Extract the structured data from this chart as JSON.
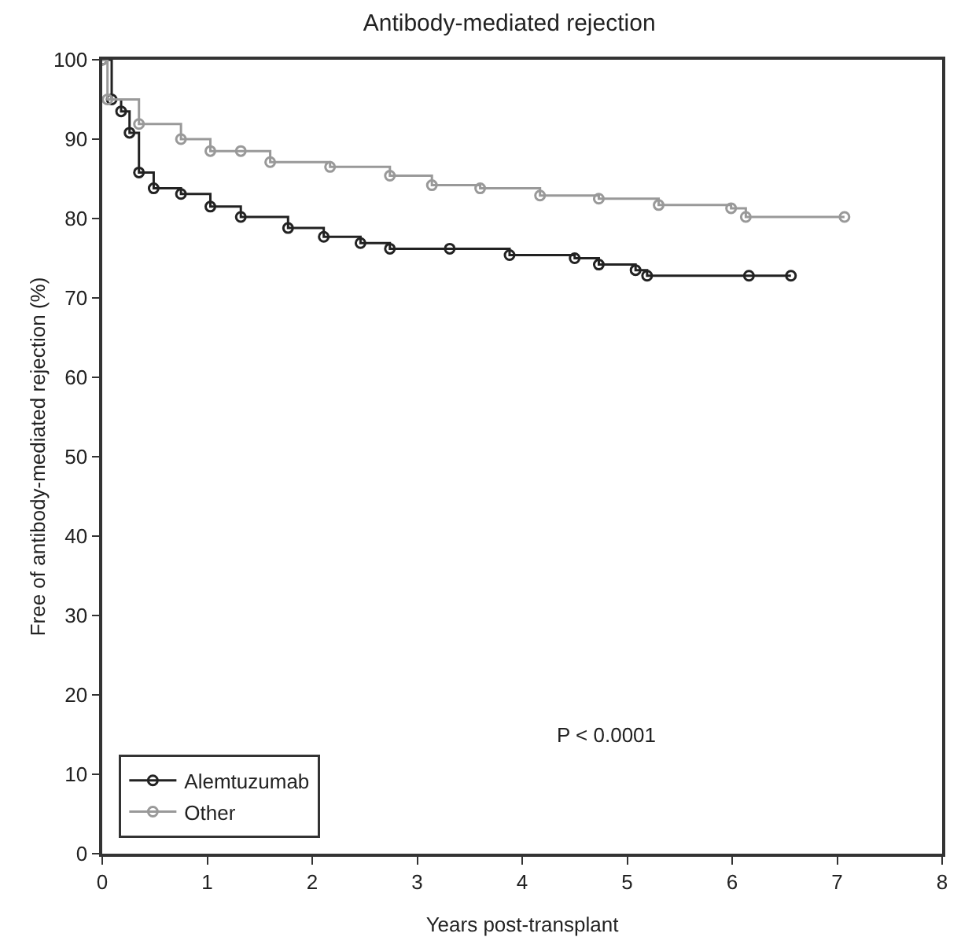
{
  "chart_data": {
    "type": "step",
    "title": "Antibody-mediated rejection",
    "xlabel": "Years post-transplant",
    "ylabel": "Free of antibody-mediated rejection (%)",
    "annotations": [
      "P < 0.0001"
    ],
    "series": [
      {
        "name": "Alemtuzumab",
        "color": "#222222",
        "x": [
          0,
          0.09,
          0.18,
          0.26,
          0.35,
          0.49,
          0.75,
          1.03,
          1.32,
          1.77,
          2.11,
          2.46,
          2.74,
          3.31,
          3.88,
          4.5,
          4.73,
          5.08,
          5.19,
          6.16,
          6.56
        ],
        "values": [
          100,
          95,
          93.5,
          90.8,
          85.8,
          83.8,
          83.1,
          81.5,
          80.2,
          78.8,
          77.7,
          76.9,
          76.2,
          76.2,
          75.4,
          75,
          74.2,
          73.5,
          72.8,
          72.8,
          72.8
        ]
      },
      {
        "name": "Other",
        "color": "#999999",
        "x": [
          0,
          0.05,
          0.35,
          0.75,
          1.03,
          1.32,
          1.6,
          2.17,
          2.74,
          3.14,
          3.6,
          4.17,
          4.73,
          5.3,
          5.99,
          6.13,
          7.07
        ],
        "values": [
          100,
          95,
          91.9,
          90,
          88.5,
          88.5,
          87.1,
          86.5,
          85.4,
          84.2,
          83.8,
          82.9,
          82.5,
          81.7,
          81.3,
          80.2,
          80.2
        ]
      }
    ],
    "xlim": [
      0,
      8
    ],
    "xticks": [
      0,
      1,
      2,
      3,
      4,
      5,
      6,
      7,
      8
    ],
    "ylim": [
      0,
      100
    ],
    "yticks": [
      0,
      10,
      20,
      30,
      40,
      50,
      60,
      70,
      80,
      90,
      100
    ],
    "grid": false,
    "legend": "bottom left",
    "marker": "circle",
    "line_style": "solid"
  }
}
